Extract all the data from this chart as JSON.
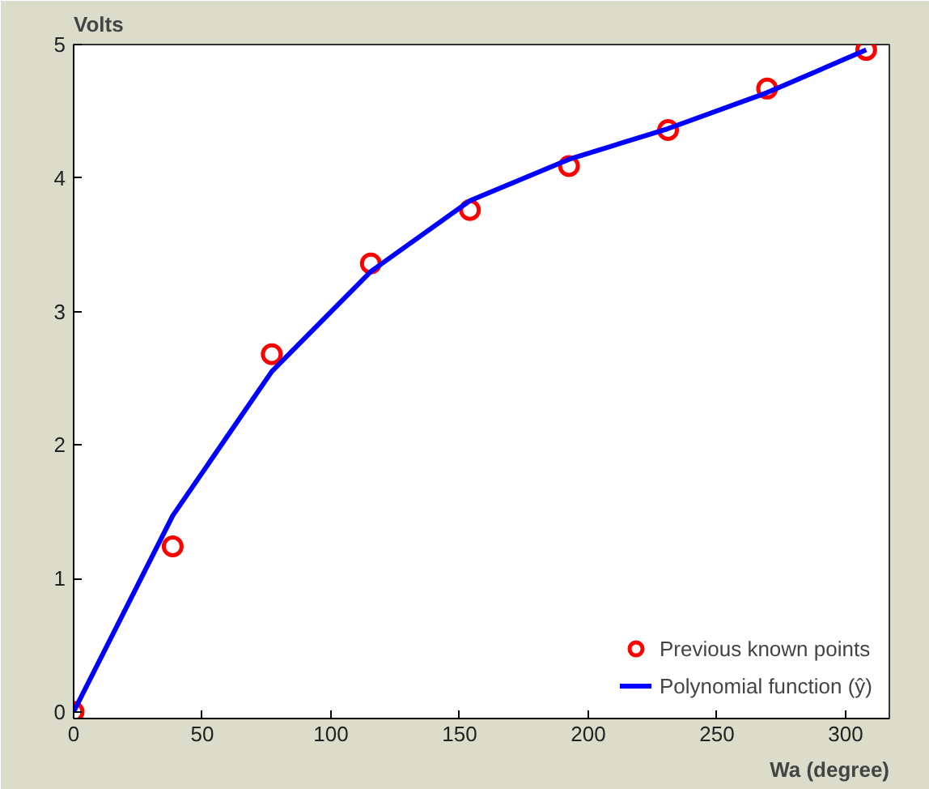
{
  "chart_data": {
    "type": "line",
    "xlabel": "Wa (degree)",
    "ylabel": "Volts",
    "xlim": [
      0,
      317
    ],
    "ylim": [
      -0.05,
      5
    ],
    "xticks": [
      0,
      50,
      100,
      150,
      200,
      250,
      300
    ],
    "yticks": [
      0,
      1,
      2,
      3,
      4,
      5
    ],
    "grid": false,
    "legend": "bottom right",
    "series": [
      {
        "name": "Previous known points",
        "type": "scatter",
        "marker": "circle",
        "color": "#ff0000",
        "x": [
          0,
          38.5,
          77,
          115.5,
          154,
          192.5,
          231,
          269.5,
          308
        ],
        "values": [
          0,
          1.24,
          2.68,
          3.36,
          3.76,
          4.09,
          4.36,
          4.67,
          4.96
        ]
      },
      {
        "name": "Polynomial function (ŷ)",
        "line_style": "solid",
        "color": "#0000ff",
        "x": [
          0,
          38.5,
          77,
          115.5,
          154,
          192.5,
          231,
          269.5,
          308
        ],
        "values": [
          0,
          1.47,
          2.55,
          3.3,
          3.83,
          4.14,
          4.37,
          4.64,
          4.96
        ]
      }
    ]
  }
}
